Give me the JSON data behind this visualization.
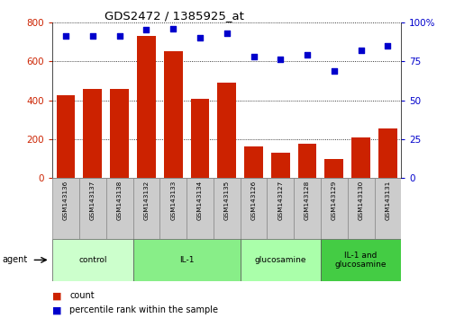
{
  "title": "GDS2472 / 1385925_at",
  "samples": [
    "GSM143136",
    "GSM143137",
    "GSM143138",
    "GSM143132",
    "GSM143133",
    "GSM143134",
    "GSM143135",
    "GSM143126",
    "GSM143127",
    "GSM143128",
    "GSM143129",
    "GSM143130",
    "GSM143131"
  ],
  "counts": [
    425,
    460,
    460,
    730,
    650,
    405,
    490,
    163,
    130,
    175,
    98,
    210,
    255
  ],
  "percentiles": [
    91,
    91,
    91,
    95,
    96,
    90,
    93,
    78,
    76,
    79,
    69,
    82,
    85
  ],
  "groups": [
    {
      "label": "control",
      "start": 0,
      "end": 3,
      "color": "#ccffcc"
    },
    {
      "label": "IL-1",
      "start": 3,
      "end": 7,
      "color": "#88ee88"
    },
    {
      "label": "glucosamine",
      "start": 7,
      "end": 10,
      "color": "#aaffaa"
    },
    {
      "label": "IL-1 and\nglucosamine",
      "start": 10,
      "end": 13,
      "color": "#44cc44"
    }
  ],
  "bar_color": "#cc2200",
  "dot_color": "#0000cc",
  "ylim_left": [
    0,
    800
  ],
  "ylim_right": [
    0,
    100
  ],
  "yticks_left": [
    0,
    200,
    400,
    600,
    800
  ],
  "yticks_right": [
    0,
    25,
    50,
    75,
    100
  ],
  "background_color": "#ffffff",
  "sample_box_color": "#cccccc",
  "agent_label": "agent",
  "legend_count_label": "count",
  "legend_pct_label": "percentile rank within the sample"
}
